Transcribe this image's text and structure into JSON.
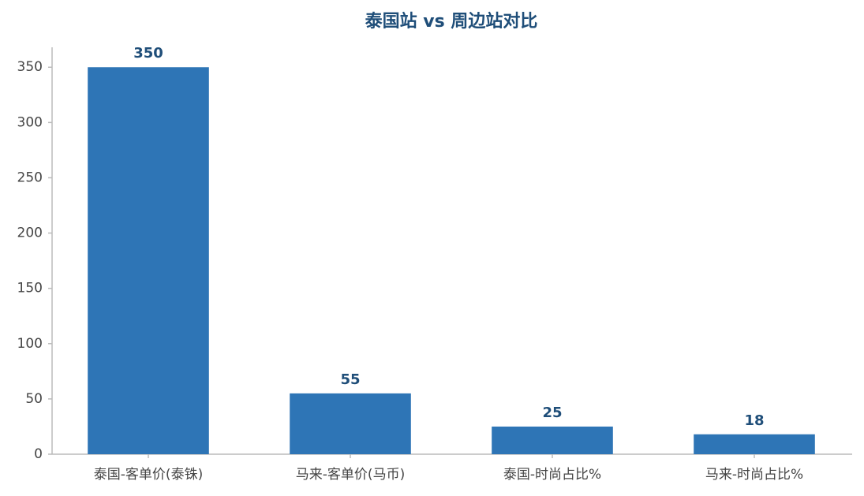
{
  "chart_data": {
    "type": "bar",
    "title": "泰国站 vs 周边站对比",
    "categories": [
      "泰国-客单价(泰铢)",
      "马来-客单价(马币)",
      "泰国-时尚占比%",
      "马来-时尚占比%"
    ],
    "values": [
      350,
      55,
      25,
      18
    ],
    "color": "#2e75b6",
    "ylim": [
      0,
      368
    ],
    "yticks": [
      0,
      50,
      100,
      150,
      200,
      250,
      300,
      350
    ],
    "grid": false
  }
}
